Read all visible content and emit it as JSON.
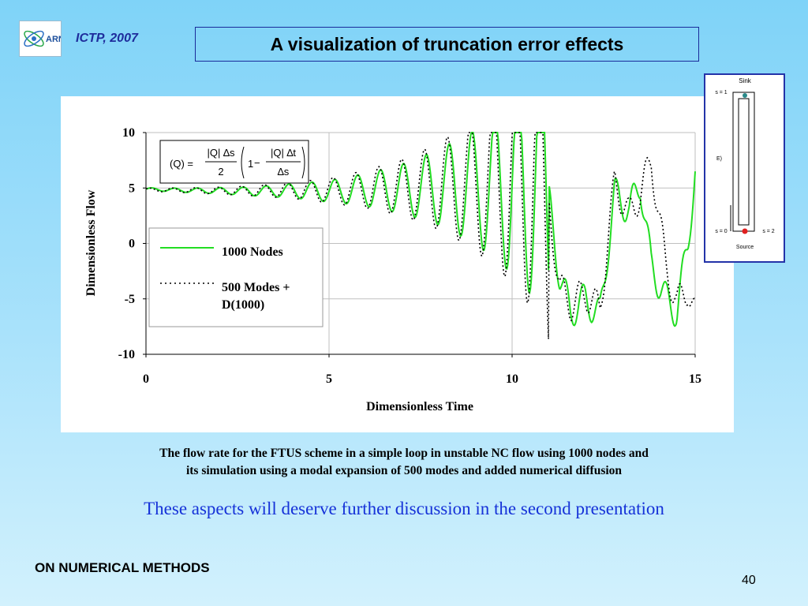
{
  "header": {
    "logo_text": "ARN",
    "conference": "ICTP, 2007",
    "title": "A visualization of truncation error effects"
  },
  "formula": {
    "lhs": "(Q) =",
    "numerator1": "|Q| ∆s",
    "denominator1": "2",
    "one": "1",
    "minus": "−",
    "numerator2": "|Q| ∆t",
    "denominator2": "∆s"
  },
  "inset": {
    "top_label": "Sink",
    "s1_label": "s = 1",
    "e_label": "E)",
    "s0_label": "s = 0",
    "s2_label": "s = 2",
    "bottom_label": "Source"
  },
  "chart_data": {
    "type": "line",
    "xlabel": "Dimensionless Time",
    "ylabel": "Dimensionless Flow",
    "xlim": [
      0,
      15
    ],
    "ylim": [
      -10,
      10
    ],
    "xticks": [
      "0",
      "5",
      "10",
      "15"
    ],
    "yticks": [
      "10",
      "5",
      "0",
      "-5",
      "-10"
    ],
    "grid": true,
    "legend_position": "middle-left",
    "series": [
      {
        "name": "1000 Nodes",
        "color": "#22dd22",
        "style": "solid",
        "points": [
          [
            0,
            4.9
          ],
          [
            1,
            4.8
          ],
          [
            2,
            4.75
          ],
          [
            3,
            4.7
          ],
          [
            4,
            4.75
          ],
          [
            5,
            4.7
          ],
          [
            6,
            4.85
          ],
          [
            7,
            4.9
          ],
          [
            8,
            5.1
          ],
          [
            9,
            5.1
          ],
          [
            10,
            5.2
          ],
          [
            10.5,
            5.3
          ],
          [
            11,
            4.0
          ],
          [
            11.3,
            -3.0
          ],
          [
            11.6,
            -6.2
          ],
          [
            12,
            -5.0
          ],
          [
            12.4,
            -6.5
          ],
          [
            12.8,
            4.5
          ],
          [
            13.2,
            3.0
          ],
          [
            13.5,
            5.5
          ],
          [
            13.8,
            -2.0
          ],
          [
            14.2,
            -5.0
          ],
          [
            14.5,
            -6.2
          ],
          [
            14.8,
            0.0
          ],
          [
            15,
            6.5
          ]
        ]
      },
      {
        "name": "500 Modes + D(1000)",
        "color": "#000000",
        "style": "dotted",
        "points": [
          [
            0,
            4.85
          ],
          [
            1,
            4.8
          ],
          [
            2,
            4.75
          ],
          [
            3,
            4.75
          ],
          [
            4,
            4.8
          ],
          [
            5,
            4.75
          ],
          [
            6,
            4.9
          ],
          [
            7,
            5.0
          ],
          [
            8,
            5.2
          ],
          [
            9,
            5.3
          ],
          [
            10,
            5.5
          ],
          [
            10.5,
            5.6
          ],
          [
            11,
            3.5
          ],
          [
            11.3,
            -4.0
          ],
          [
            11.6,
            -5.5
          ],
          [
            12,
            -4.5
          ],
          [
            12.4,
            -6.0
          ],
          [
            12.8,
            5.5
          ],
          [
            13.2,
            2.5
          ],
          [
            13.5,
            4.5
          ],
          [
            13.8,
            7.5
          ],
          [
            14.2,
            -2.0
          ],
          [
            14.5,
            -5.5
          ],
          [
            14.8,
            -4.0
          ],
          [
            15,
            -6.5
          ]
        ]
      }
    ]
  },
  "caption": {
    "line1": "The flow rate for the FTUS scheme in a simple loop in unstable NC flow using 1000 nodes and",
    "line2": "its simulation using a modal expansion of 500 modes and added numerical diffusion"
  },
  "remark": "These aspects will deserve further discussion in the second presentation",
  "footer": {
    "title": "ON NUMERICAL METHODS",
    "page": "40"
  }
}
